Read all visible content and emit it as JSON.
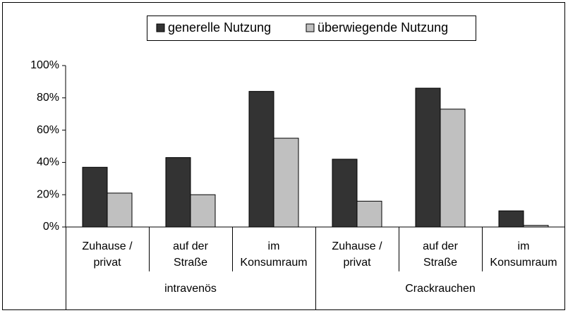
{
  "chart_data": {
    "type": "bar",
    "groups": [
      {
        "label": "intravenös",
        "span": 3
      },
      {
        "label": "Crackrauchen",
        "span": 3
      }
    ],
    "categories": [
      [
        "Zuhause /",
        "privat"
      ],
      [
        "auf der",
        "Straße"
      ],
      [
        "im",
        "Konsumraum"
      ],
      [
        "Zuhause /",
        "privat"
      ],
      [
        "auf der",
        "Straße"
      ],
      [
        "im",
        "Konsumraum"
      ]
    ],
    "series": [
      {
        "name": "generelle Nutzung",
        "color": "#333333",
        "values": [
          37,
          43,
          84,
          42,
          86,
          10
        ]
      },
      {
        "name": "überwiegende Nutzung",
        "color": "#c0c0c0",
        "values": [
          21,
          20,
          55,
          16,
          73,
          1
        ]
      }
    ],
    "ylim": [
      0,
      100
    ],
    "yticks": [
      {
        "value": 0,
        "label": "0%"
      },
      {
        "value": 20,
        "label": "20%"
      },
      {
        "value": 40,
        "label": "40%"
      },
      {
        "value": 60,
        "label": "60%"
      },
      {
        "value": 80,
        "label": "80%"
      },
      {
        "value": 100,
        "label": "100%"
      }
    ],
    "legend": "top"
  }
}
